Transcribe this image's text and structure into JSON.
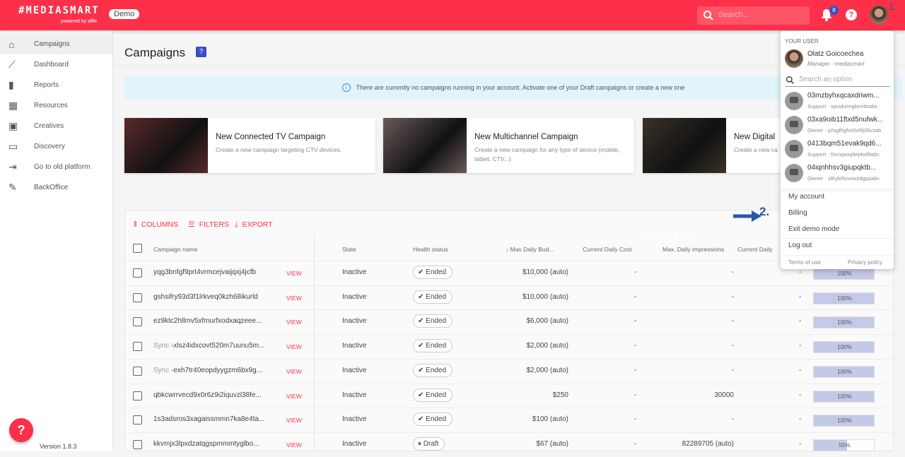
{
  "header": {
    "logo": "#MEDIASMART",
    "logo_sub": "powered by affle",
    "demo_badge": "Demo",
    "search_placeholder": "Search...",
    "notifications": "8",
    "help": "?",
    "step1": "1."
  },
  "sidebar": {
    "items": [
      {
        "label": "Campaigns",
        "icon": "home-icon",
        "glyph": "⌂"
      },
      {
        "label": "Dashboard",
        "icon": "trending-icon",
        "glyph": "⟋"
      },
      {
        "label": "Reports",
        "icon": "bar-chart-icon",
        "glyph": "▮"
      },
      {
        "label": "Resources",
        "icon": "widgets-icon",
        "glyph": "▦"
      },
      {
        "label": "Creatives",
        "icon": "image-icon",
        "glyph": "▣"
      },
      {
        "label": "Discovery",
        "icon": "laptop-search-icon",
        "glyph": "▭"
      },
      {
        "label": "Go to old platform",
        "icon": "login-icon",
        "glyph": "⇥"
      },
      {
        "label": "BackOffice",
        "icon": "pencil-icon",
        "glyph": "✎"
      }
    ],
    "version": "Version 1.8.3",
    "help_fab": "?"
  },
  "main": {
    "title": "Campaigns",
    "title_icon": "?",
    "info": "There are currently no campaigns running in your account. Activate one of your Draft campaigns or create a new one",
    "cards": [
      {
        "title": "New Connected TV Campaign",
        "desc": "Create a new campaign targeting CTV devices.",
        "color": "#5a2a2a"
      },
      {
        "title": "New Multichannel Campaign",
        "desc": "Create a new campaign for any type of device (mobile, tablet, CTV...)",
        "color": "#6a5a5a"
      },
      {
        "title": "New Digital",
        "desc": "Create a new ca",
        "color": "#3a3228"
      }
    ]
  },
  "table": {
    "toolbar": {
      "columns": "COLUMNS",
      "filters": "FILTERS",
      "export": "EXPORT"
    },
    "headers": [
      "Campaign name",
      "State",
      "Health status",
      "Max Daily Bud...",
      "Current Daily Cost",
      "Max. Daily impressions",
      "Current Daily"
    ],
    "overlay": "Double Click",
    "view_label": "VIEW",
    "rows": [
      {
        "prefix": "",
        "name": "yqg3bnfgf9prt4vrmcejvaijqxj4jcfb",
        "state": "Inactive",
        "health": "Ended",
        "budget": "$10,000 (auto)",
        "cost": "-",
        "imps": "-",
        "cur": "-",
        "progress": "100%",
        "pct": 100
      },
      {
        "prefix": "",
        "name": "gshsifry93d3f1lrkveq0kzh68ikurld",
        "state": "Inactive",
        "health": "Ended",
        "budget": "$10,000 (auto)",
        "cost": "-",
        "imps": "-",
        "cur": "-",
        "progress": "100%",
        "pct": 100
      },
      {
        "prefix": "",
        "name": "ez9ktc2hllmv5xfmurfxodxaqzeee...",
        "state": "Inactive",
        "health": "Ended",
        "budget": "$6,000 (auto)",
        "cost": "-",
        "imps": "-",
        "cur": "-",
        "progress": "100%",
        "pct": 100
      },
      {
        "prefix": "Sync",
        "name": " -xlsz4idxcovt520m7uunu5m...",
        "state": "Inactive",
        "health": "Ended",
        "budget": "$2,000 (auto)",
        "cost": "-",
        "imps": "-",
        "cur": "-",
        "progress": "100%",
        "pct": 100
      },
      {
        "prefix": "Sync",
        "name": " -exh7tr40eopdyygzm6bx9g...",
        "state": "Inactive",
        "health": "Ended",
        "budget": "$2,000 (auto)",
        "cost": "-",
        "imps": "-",
        "cur": "-",
        "progress": "100%",
        "pct": 100
      },
      {
        "prefix": "",
        "name": "qbkcwrrvecd9x0r6z9i2iquvzl38fe...",
        "state": "Inactive",
        "health": "Ended",
        "budget": "$250",
        "cost": "-",
        "imps": "30000",
        "cur": "-",
        "progress": "100%",
        "pct": 100
      },
      {
        "prefix": "",
        "name": "1s3adsros3xagaissmmn7ka8e4ta...",
        "state": "Inactive",
        "health": "Ended",
        "budget": "$100 (auto)",
        "cost": "-",
        "imps": "-",
        "cur": "-",
        "progress": "100%",
        "pct": 100
      },
      {
        "prefix": "",
        "name": "kkvmjx3lpxdzatqgspmmmtyglbo...",
        "state": "Inactive",
        "health": "Draft",
        "budget": "$67 (auto)",
        "cost": "-",
        "imps": "82289705 (auto)",
        "cur": "-",
        "progress": "55%",
        "pct": 55
      }
    ]
  },
  "user_menu": {
    "section": "YOUR USER",
    "name": "Olatz Goicoechea",
    "role": "Manager · mediasmart",
    "search_placeholder": "Search an option",
    "options": [
      {
        "name": "03mzbyhxqcaxdriwm...",
        "sub": "Support · xpuvkzmgbmrttsabc"
      },
      {
        "name": "03xa9oib11ftxd5nufwk...",
        "sub": "Owner · y2sgfhgfsx5xl9j35vzab"
      },
      {
        "name": "0413bqm51evak9qd6...",
        "sub": "Support · 5smqxoq9ej4od9abc"
      },
      {
        "name": "04iqnhhsv3giupqktb...",
        "sub": "Owner · s8rykt5vvxwzdgppabc"
      }
    ],
    "my_account": "My account",
    "billing": "Billing",
    "exit_demo": "Exit demo mode",
    "logout": "Log out",
    "terms": "Terms of use",
    "privacy": "Privacy policy"
  },
  "annotation": {
    "step2": "2."
  },
  "colors": {
    "brand": "#fd3049",
    "accent": "#3a4fc4"
  }
}
